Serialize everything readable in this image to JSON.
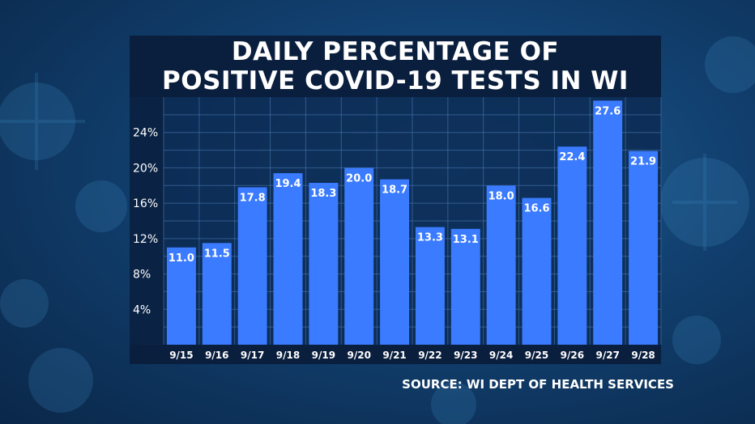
{
  "title_lines": [
    "DAILY PERCENTAGE OF",
    "POSITIVE COVID-19 TESTS IN WI"
  ],
  "source": "SOURCE: WI DEPT OF HEALTH SERVICES",
  "colors": {
    "bar": "#3a7bff",
    "plot_bg": "#0c2a52",
    "axis_bg": "#0a1f3e",
    "grid": "#4f7fb8",
    "text": "#ffffff"
  },
  "chart_data": {
    "type": "bar",
    "title": "DAILY PERCENTAGE OF POSITIVE COVID-19 TESTS IN WI",
    "categories": [
      "9/15",
      "9/16",
      "9/17",
      "9/18",
      "9/19",
      "9/20",
      "9/21",
      "9/22",
      "9/23",
      "9/24",
      "9/25",
      "9/26",
      "9/27",
      "9/28"
    ],
    "values": [
      11.0,
      11.5,
      17.8,
      19.4,
      18.3,
      20.0,
      18.7,
      13.3,
      13.1,
      18.0,
      16.6,
      22.4,
      27.6,
      21.9
    ],
    "value_labels": [
      "11.0",
      "11.5",
      "17.8",
      "19.4",
      "18.3",
      "20.0",
      "18.7",
      "13.3",
      "13.1",
      "18.0",
      "16.6",
      "22.4",
      "27.6",
      "21.9"
    ],
    "yticks": [
      4,
      8,
      12,
      16,
      20,
      24
    ],
    "ytick_labels": [
      "4%",
      "8%",
      "12%",
      "16%",
      "20%",
      "24%"
    ],
    "ylim": [
      0,
      28
    ],
    "xlabel": "",
    "ylabel": "",
    "grid": true,
    "legend": "none"
  }
}
